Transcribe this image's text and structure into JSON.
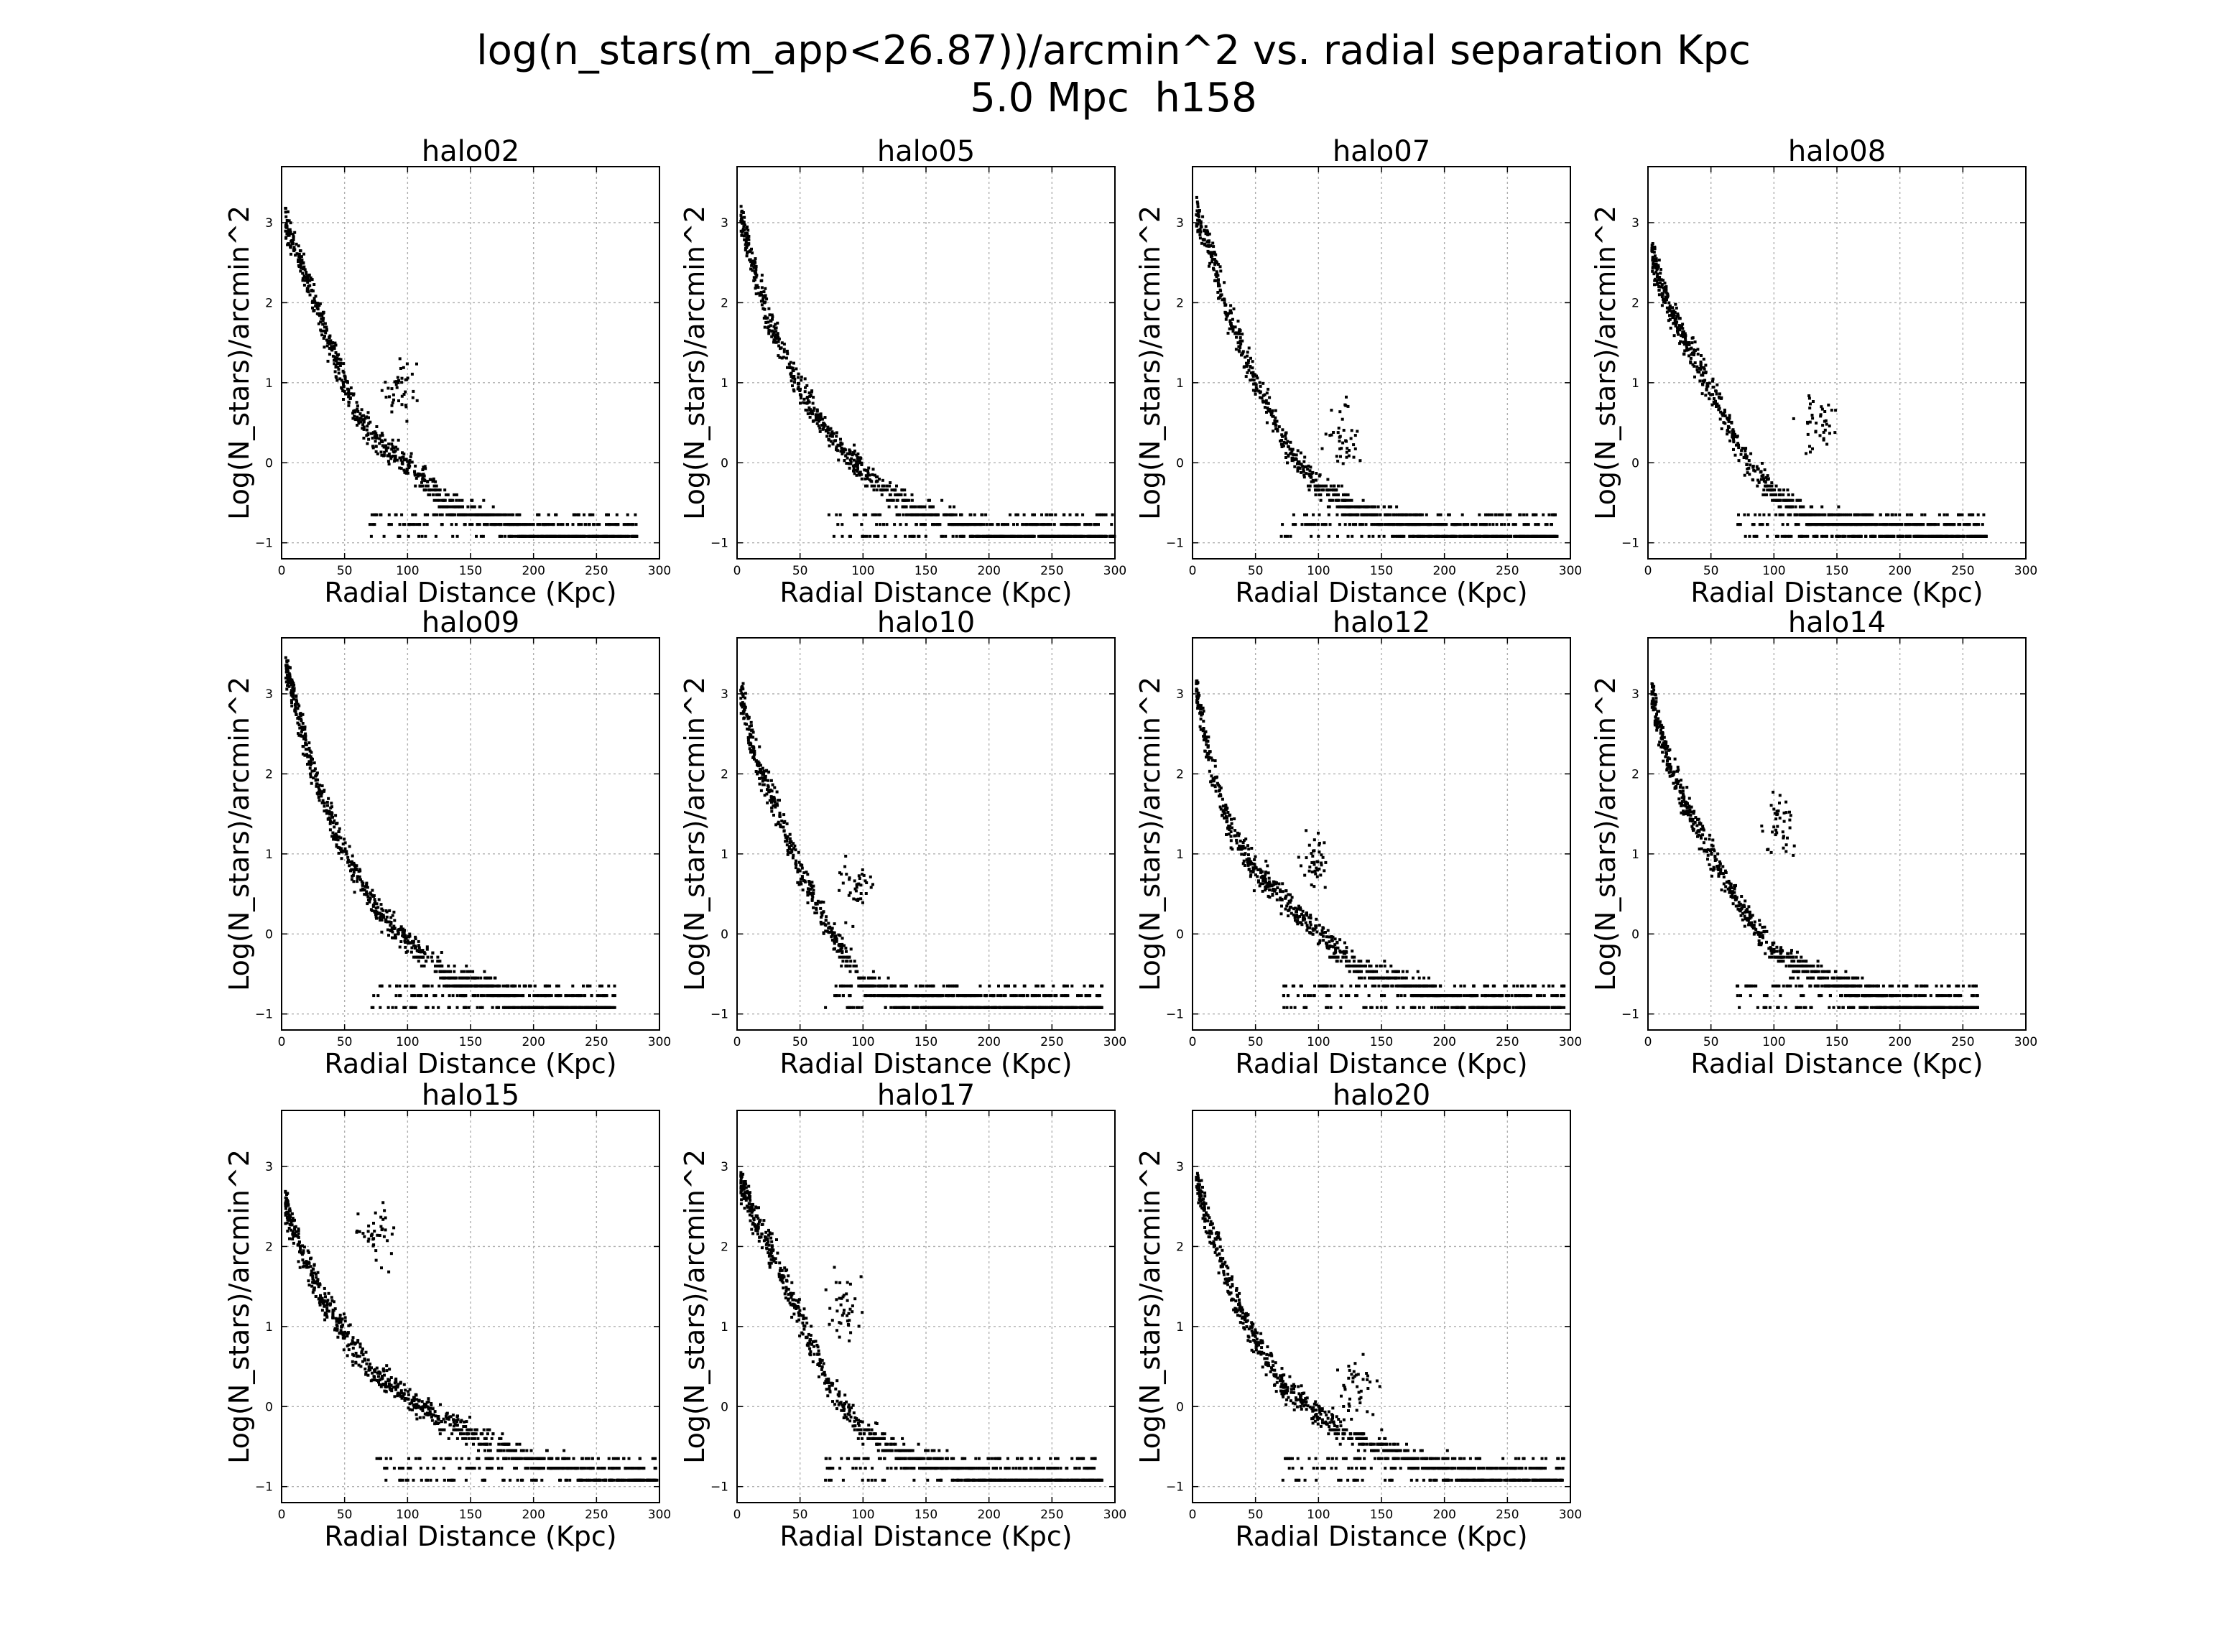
{
  "figure": {
    "title_line1": "log(n_stars(m_app<26.87))/arcmin^2 vs. radial separation Kpc",
    "title_line2": "5.0 Mpc  h158"
  },
  "chart_data": [
    {
      "type": "scatter",
      "title": "halo02",
      "xlabel": "Radial Distance (Kpc)",
      "ylabel": "Log(N_stars)/arcmin^2",
      "xlim": [
        0,
        300
      ],
      "ylim": [
        -1.2,
        3.7
      ],
      "xticks": [
        "0",
        "50",
        "100",
        "150",
        "200",
        "250",
        "300"
      ],
      "yticks": [
        "−1",
        "0",
        "1",
        "2",
        "3"
      ],
      "grid": true,
      "marker_color": "#000000",
      "profile": {
        "r": [
          3,
          20,
          40,
          60,
          80,
          100,
          130,
          200,
          280
        ],
        "logN": [
          3.0,
          2.3,
          1.4,
          0.6,
          0.2,
          0.0,
          -0.5,
          -0.9,
          -0.95
        ]
      },
      "max_r": 282,
      "bump": {
        "r": 95,
        "logN": 0.9
      }
    },
    {
      "type": "scatter",
      "title": "halo05",
      "xlabel": "Radial Distance (Kpc)",
      "ylabel": "Log(N_stars)/arcmin^2",
      "xlim": [
        0,
        300
      ],
      "ylim": [
        -1.2,
        3.7
      ],
      "xticks": [
        "0",
        "50",
        "100",
        "150",
        "200",
        "250",
        "300"
      ],
      "yticks": [
        "−1",
        "0",
        "1",
        "2",
        "3"
      ],
      "grid": true,
      "marker_color": "#000000",
      "profile": {
        "r": [
          3,
          15,
          30,
          50,
          75,
          100,
          130,
          200,
          300
        ],
        "logN": [
          3.1,
          2.3,
          1.6,
          0.9,
          0.3,
          -0.1,
          -0.5,
          -0.9,
          -0.95
        ]
      },
      "max_r": 300,
      "bump": null
    },
    {
      "type": "scatter",
      "title": "halo07",
      "xlabel": "Radial Distance (Kpc)",
      "ylabel": "Log(N_stars)/arcmin^2",
      "xlim": [
        0,
        300
      ],
      "ylim": [
        -1.2,
        3.7
      ],
      "xticks": [
        "0",
        "50",
        "100",
        "150",
        "200",
        "250",
        "300"
      ],
      "yticks": [
        "−1",
        "0",
        "1",
        "2",
        "3"
      ],
      "grid": true,
      "marker_color": "#000000",
      "profile": {
        "r": [
          3,
          15,
          30,
          50,
          75,
          100,
          130,
          200,
          290
        ],
        "logN": [
          3.1,
          2.6,
          1.8,
          1.0,
          0.2,
          -0.3,
          -0.6,
          -0.9,
          -0.95
        ]
      },
      "max_r": 290,
      "bump": {
        "r": 120,
        "logN": 0.3
      }
    },
    {
      "type": "scatter",
      "title": "halo08",
      "xlabel": "Radial Distance (Kpc)",
      "ylabel": "Log(N_stars)/arcmin^2",
      "xlim": [
        0,
        300
      ],
      "ylim": [
        -1.2,
        3.7
      ],
      "xticks": [
        "0",
        "50",
        "100",
        "150",
        "200",
        "250",
        "300"
      ],
      "yticks": [
        "−1",
        "0",
        "1",
        "2",
        "3"
      ],
      "grid": true,
      "marker_color": "#000000",
      "profile": {
        "r": [
          3,
          15,
          30,
          50,
          75,
          100,
          130,
          200,
          270
        ],
        "logN": [
          2.6,
          2.0,
          1.5,
          0.9,
          0.1,
          -0.4,
          -0.7,
          -0.9,
          -0.95
        ]
      },
      "max_r": 270,
      "bump": {
        "r": 135,
        "logN": 0.5
      }
    },
    {
      "type": "scatter",
      "title": "halo09",
      "xlabel": "Radial Distance (Kpc)",
      "ylabel": "Log(N_stars)/arcmin^2",
      "xlim": [
        0,
        300
      ],
      "ylim": [
        -1.2,
        3.7
      ],
      "xticks": [
        "0",
        "50",
        "100",
        "150",
        "200",
        "250",
        "300"
      ],
      "yticks": [
        "−1",
        "0",
        "1",
        "2",
        "3"
      ],
      "grid": true,
      "marker_color": "#000000",
      "profile": {
        "r": [
          3,
          15,
          30,
          50,
          75,
          100,
          130,
          200,
          265
        ],
        "logN": [
          3.4,
          2.6,
          1.8,
          1.0,
          0.3,
          -0.1,
          -0.5,
          -0.9,
          -0.95
        ]
      },
      "max_r": 265,
      "bump": null
    },
    {
      "type": "scatter",
      "title": "halo10",
      "xlabel": "Radial Distance (Kpc)",
      "ylabel": "Log(N_stars)/arcmin^2",
      "xlim": [
        0,
        300
      ],
      "ylim": [
        -1.2,
        3.7
      ],
      "xticks": [
        "0",
        "50",
        "100",
        "150",
        "200",
        "250",
        "300"
      ],
      "yticks": [
        "−1",
        "0",
        "1",
        "2",
        "3"
      ],
      "grid": true,
      "marker_color": "#000000",
      "profile": {
        "r": [
          3,
          15,
          30,
          50,
          75,
          100,
          130,
          200,
          290
        ],
        "logN": [
          3.0,
          2.2,
          1.6,
          0.8,
          0.0,
          -0.6,
          -0.8,
          -0.9,
          -0.95
        ]
      },
      "max_r": 290,
      "bump": {
        "r": 95,
        "logN": 0.6
      }
    },
    {
      "type": "scatter",
      "title": "halo12",
      "xlabel": "Radial Distance (Kpc)",
      "ylabel": "Log(N_stars)/arcmin^2",
      "xlim": [
        0,
        300
      ],
      "ylim": [
        -1.2,
        3.7
      ],
      "xticks": [
        "0",
        "50",
        "100",
        "150",
        "200",
        "250",
        "300"
      ],
      "yticks": [
        "−1",
        "0",
        "1",
        "2",
        "3"
      ],
      "grid": true,
      "marker_color": "#000000",
      "profile": {
        "r": [
          3,
          15,
          30,
          50,
          75,
          100,
          130,
          200,
          295
        ],
        "logN": [
          3.0,
          2.1,
          1.3,
          0.8,
          0.4,
          0.0,
          -0.4,
          -0.8,
          -0.95
        ]
      },
      "max_r": 295,
      "bump": {
        "r": 95,
        "logN": 0.9
      }
    },
    {
      "type": "scatter",
      "title": "halo14",
      "xlabel": "Radial Distance (Kpc)",
      "ylabel": "Log(N_stars)/arcmin^2",
      "xlim": [
        0,
        300
      ],
      "ylim": [
        -1.2,
        3.7
      ],
      "xticks": [
        "0",
        "50",
        "100",
        "150",
        "200",
        "250",
        "300"
      ],
      "yticks": [
        "−1",
        "0",
        "1",
        "2",
        "3"
      ],
      "grid": true,
      "marker_color": "#000000",
      "profile": {
        "r": [
          3,
          15,
          30,
          50,
          75,
          100,
          130,
          200,
          262
        ],
        "logN": [
          3.0,
          2.2,
          1.6,
          1.0,
          0.3,
          -0.2,
          -0.5,
          -0.9,
          -0.95
        ]
      },
      "max_r": 262,
      "bump": {
        "r": 105,
        "logN": 1.3
      }
    },
    {
      "type": "scatter",
      "title": "halo15",
      "xlabel": "Radial Distance (Kpc)",
      "ylabel": "Log(N_stars)/arcmin^2",
      "xlim": [
        0,
        300
      ],
      "ylim": [
        -1.2,
        3.7
      ],
      "xticks": [
        "0",
        "50",
        "100",
        "150",
        "200",
        "250",
        "300"
      ],
      "yticks": [
        "−1",
        "0",
        "1",
        "2",
        "3"
      ],
      "grid": true,
      "marker_color": "#000000",
      "profile": {
        "r": [
          3,
          15,
          30,
          50,
          75,
          100,
          130,
          200,
          298
        ],
        "logN": [
          2.5,
          2.0,
          1.4,
          0.9,
          0.4,
          0.1,
          -0.2,
          -0.7,
          -0.95
        ]
      },
      "max_r": 298,
      "bump": {
        "r": 75,
        "logN": 2.2
      }
    },
    {
      "type": "scatter",
      "title": "halo17",
      "xlabel": "Radial Distance (Kpc)",
      "ylabel": "Log(N_stars)/arcmin^2",
      "xlim": [
        0,
        300
      ],
      "ylim": [
        -1.2,
        3.7
      ],
      "xticks": [
        "0",
        "50",
        "100",
        "150",
        "200",
        "250",
        "300"
      ],
      "yticks": [
        "−1",
        "0",
        "1",
        "2",
        "3"
      ],
      "grid": true,
      "marker_color": "#000000",
      "profile": {
        "r": [
          3,
          15,
          30,
          50,
          75,
          100,
          130,
          200,
          290
        ],
        "logN": [
          2.8,
          2.3,
          1.9,
          1.1,
          0.2,
          -0.3,
          -0.6,
          -0.9,
          -0.95
        ]
      },
      "max_r": 290,
      "bump": {
        "r": 85,
        "logN": 1.3
      }
    },
    {
      "type": "scatter",
      "title": "halo20",
      "xlabel": "Radial Distance (Kpc)",
      "ylabel": "Log(N_stars)/arcmin^2",
      "xlim": [
        0,
        300
      ],
      "ylim": [
        -1.2,
        3.7
      ],
      "xticks": [
        "0",
        "50",
        "100",
        "150",
        "200",
        "250",
        "300"
      ],
      "yticks": [
        "−1",
        "0",
        "1",
        "2",
        "3"
      ],
      "grid": true,
      "marker_color": "#000000",
      "profile": {
        "r": [
          3,
          15,
          30,
          50,
          75,
          100,
          130,
          200,
          295
        ],
        "logN": [
          2.8,
          2.2,
          1.5,
          0.8,
          0.2,
          -0.1,
          -0.4,
          -0.8,
          -0.95
        ]
      },
      "max_r": 295,
      "bump": {
        "r": 130,
        "logN": 0.2
      }
    }
  ]
}
